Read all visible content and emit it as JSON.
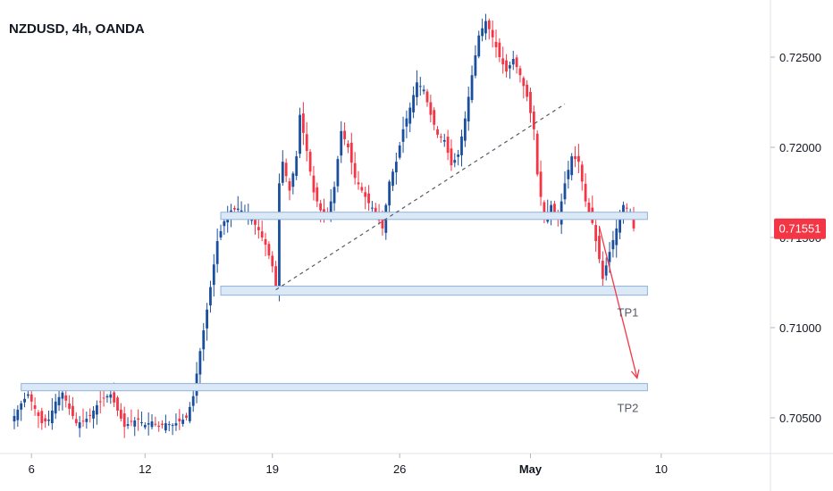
{
  "chart_data": {
    "type": "candlestick",
    "title": "NZDUSD, 4h, OANDA",
    "price_axis": {
      "ticks": [
        "0.72500",
        "0.72000",
        "0.71500",
        "0.71000",
        "0.70500"
      ],
      "values": [
        0.725,
        0.72,
        0.715,
        0.71,
        0.705
      ]
    },
    "time_axis": {
      "ticks": [
        "6",
        "12",
        "19",
        "26",
        "May",
        "10"
      ],
      "index": [
        5,
        38,
        75,
        112,
        150,
        188
      ]
    },
    "current_price": {
      "label": "0.71551",
      "value": 0.71551,
      "color": "#f23645"
    },
    "colors": {
      "up": "#1a4fa0",
      "down": "#f23645",
      "zone_fill": "#dbe9f7",
      "zone_stroke": "#8fb2dc",
      "arrow": "#f23645"
    },
    "zones": [
      {
        "name": "resistance-zone",
        "low": 0.716,
        "high": 0.7164,
        "start": 60,
        "end": 184,
        "label": ""
      },
      {
        "name": "tp1-zone",
        "low": 0.7118,
        "high": 0.7123,
        "start": 60,
        "end": 184,
        "label": "TP1"
      },
      {
        "name": "tp2-zone",
        "low": 0.7065,
        "high": 0.7069,
        "start": 2,
        "end": 184,
        "label": "TP2"
      }
    ],
    "trendline": {
      "from": {
        "i": 76,
        "p": 0.7121
      },
      "to": {
        "i": 160,
        "p": 0.7224
      }
    },
    "arrow": {
      "from": {
        "i": 170,
        "p": 0.7156
      },
      "to": {
        "i": 181,
        "p": 0.7072
      }
    },
    "anchors": [
      [
        0,
        0.7051
      ],
      [
        2,
        0.7058
      ],
      [
        4,
        0.7063
      ],
      [
        6,
        0.7055
      ],
      [
        8,
        0.7047
      ],
      [
        10,
        0.7049
      ],
      [
        12,
        0.7059
      ],
      [
        14,
        0.7064
      ],
      [
        16,
        0.7055
      ],
      [
        18,
        0.7047
      ],
      [
        20,
        0.7048
      ],
      [
        22,
        0.7051
      ],
      [
        24,
        0.7057
      ],
      [
        26,
        0.7061
      ],
      [
        28,
        0.7063
      ],
      [
        30,
        0.7054
      ],
      [
        32,
        0.7045
      ],
      [
        34,
        0.7048
      ],
      [
        36,
        0.7049
      ],
      [
        38,
        0.7046
      ],
      [
        40,
        0.7048
      ],
      [
        42,
        0.7045
      ],
      [
        44,
        0.7047
      ],
      [
        46,
        0.7046
      ],
      [
        48,
        0.7048
      ],
      [
        50,
        0.705
      ],
      [
        52,
        0.7062
      ],
      [
        54,
        0.7087
      ],
      [
        56,
        0.711
      ],
      [
        58,
        0.7135
      ],
      [
        59,
        0.7148
      ],
      [
        61,
        0.7159
      ],
      [
        63,
        0.7165
      ],
      [
        65,
        0.7166
      ],
      [
        67,
        0.7164
      ],
      [
        69,
        0.716
      ],
      [
        71,
        0.7154
      ],
      [
        73,
        0.7146
      ],
      [
        75,
        0.7134
      ],
      [
        76,
        0.7121
      ],
      [
        77,
        0.718
      ],
      [
        78,
        0.7192
      ],
      [
        80,
        0.7176
      ],
      [
        82,
        0.7195
      ],
      [
        83,
        0.7218
      ],
      [
        85,
        0.7198
      ],
      [
        87,
        0.7175
      ],
      [
        89,
        0.7165
      ],
      [
        91,
        0.7162
      ],
      [
        93,
        0.7178
      ],
      [
        95,
        0.7209
      ],
      [
        97,
        0.72
      ],
      [
        99,
        0.7183
      ],
      [
        101,
        0.7176
      ],
      [
        103,
        0.7169
      ],
      [
        105,
        0.7164
      ],
      [
        107,
        0.7155
      ],
      [
        109,
        0.7181
      ],
      [
        111,
        0.7192
      ],
      [
        113,
        0.721
      ],
      [
        115,
        0.7222
      ],
      [
        117,
        0.7236
      ],
      [
        119,
        0.7232
      ],
      [
        121,
        0.7218
      ],
      [
        123,
        0.7207
      ],
      [
        125,
        0.7204
      ],
      [
        127,
        0.719
      ],
      [
        129,
        0.7196
      ],
      [
        131,
        0.7216
      ],
      [
        133,
        0.724
      ],
      [
        135,
        0.7262
      ],
      [
        137,
        0.727
      ],
      [
        139,
        0.7261
      ],
      [
        141,
        0.725
      ],
      [
        143,
        0.7242
      ],
      [
        145,
        0.7249
      ],
      [
        147,
        0.724
      ],
      [
        149,
        0.7228
      ],
      [
        151,
        0.721
      ],
      [
        152,
        0.7185
      ],
      [
        154,
        0.716
      ],
      [
        156,
        0.7168
      ],
      [
        158,
        0.716
      ],
      [
        160,
        0.718
      ],
      [
        162,
        0.7195
      ],
      [
        164,
        0.7192
      ],
      [
        166,
        0.717
      ],
      [
        168,
        0.7158
      ],
      [
        170,
        0.7138
      ],
      [
        171,
        0.7127
      ],
      [
        173,
        0.7142
      ],
      [
        175,
        0.7155
      ],
      [
        177,
        0.7168
      ],
      [
        179,
        0.7164
      ],
      [
        180,
        0.7155
      ]
    ]
  }
}
